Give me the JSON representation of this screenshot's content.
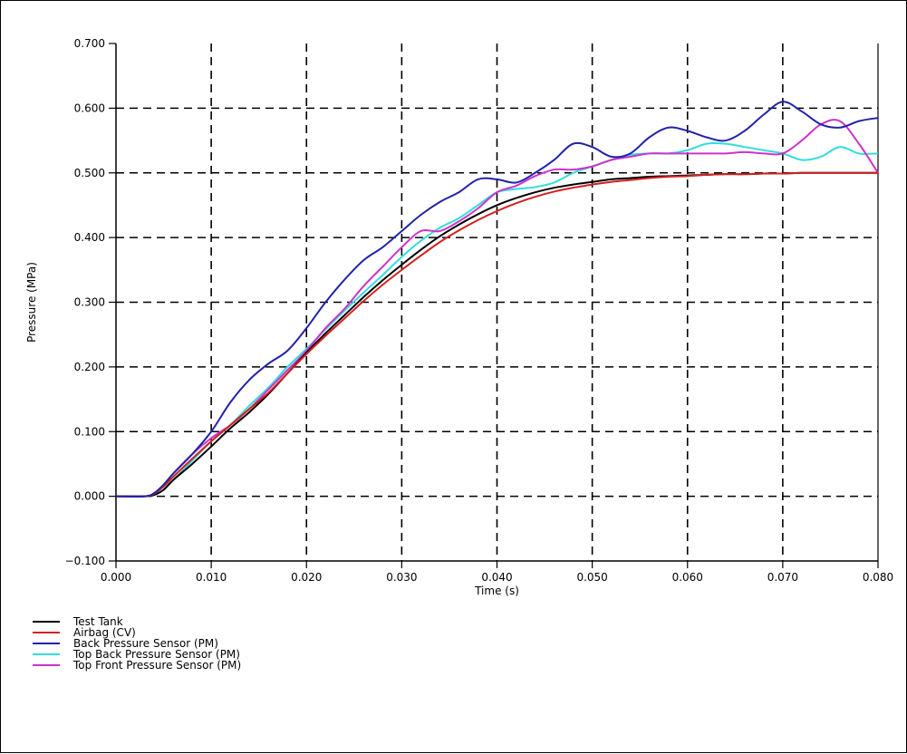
{
  "chart_data": {
    "type": "line",
    "title": "",
    "xlabel": "Time (s)",
    "ylabel": "Pressure (MPa)",
    "xlim": [
      0.0,
      0.08
    ],
    "ylim": [
      -0.1,
      0.7
    ],
    "xticks": [
      "0.000",
      "0.010",
      "0.020",
      "0.030",
      "0.040",
      "0.050",
      "0.060",
      "0.070",
      "0.080"
    ],
    "yticks": [
      "-0.100",
      "0.000",
      "0.100",
      "0.200",
      "0.300",
      "0.400",
      "0.500",
      "0.600",
      "0.700"
    ],
    "grid": true,
    "legend_position": "below",
    "series": [
      {
        "name": "Test Tank",
        "color": "#000000",
        "x": [
          0,
          0.003,
          0.004,
          0.005,
          0.006,
          0.008,
          0.01,
          0.012,
          0.014,
          0.016,
          0.018,
          0.02,
          0.022,
          0.024,
          0.026,
          0.028,
          0.03,
          0.032,
          0.034,
          0.036,
          0.038,
          0.04,
          0.042,
          0.044,
          0.046,
          0.048,
          0.05,
          0.052,
          0.054,
          0.056,
          0.058,
          0.06,
          0.062,
          0.064,
          0.066,
          0.068,
          0.07,
          0.072,
          0.074,
          0.076,
          0.078,
          0.08
        ],
        "y": [
          0,
          0,
          0.002,
          0.01,
          0.025,
          0.05,
          0.077,
          0.105,
          0.13,
          0.158,
          0.19,
          0.222,
          0.252,
          0.28,
          0.308,
          0.334,
          0.358,
          0.381,
          0.402,
          0.42,
          0.436,
          0.45,
          0.461,
          0.47,
          0.477,
          0.482,
          0.486,
          0.49,
          0.492,
          0.494,
          0.495,
          0.496,
          0.497,
          0.498,
          0.498,
          0.499,
          0.499,
          0.5,
          0.5,
          0.5,
          0.5,
          0.5
        ]
      },
      {
        "name": "Airbag (CV)",
        "color": "#d42020",
        "x": [
          0,
          0.003,
          0.004,
          0.005,
          0.006,
          0.008,
          0.01,
          0.012,
          0.014,
          0.016,
          0.018,
          0.02,
          0.022,
          0.024,
          0.026,
          0.028,
          0.03,
          0.032,
          0.034,
          0.036,
          0.038,
          0.04,
          0.042,
          0.044,
          0.046,
          0.048,
          0.05,
          0.052,
          0.054,
          0.056,
          0.058,
          0.06,
          0.062,
          0.064,
          0.066,
          0.068,
          0.07,
          0.072,
          0.074,
          0.076,
          0.078,
          0.08
        ],
        "y": [
          0,
          0,
          0.004,
          0.015,
          0.03,
          0.058,
          0.085,
          0.11,
          0.135,
          0.16,
          0.19,
          0.22,
          0.248,
          0.275,
          0.302,
          0.327,
          0.35,
          0.372,
          0.393,
          0.411,
          0.427,
          0.441,
          0.453,
          0.463,
          0.471,
          0.477,
          0.482,
          0.486,
          0.489,
          0.492,
          0.494,
          0.495,
          0.497,
          0.498,
          0.498,
          0.499,
          0.499,
          0.5,
          0.5,
          0.5,
          0.5,
          0.5
        ]
      },
      {
        "name": "Back Pressure Sensor (PM)",
        "color": "#2222aa",
        "x": [
          0,
          0.003,
          0.004,
          0.005,
          0.006,
          0.008,
          0.01,
          0.012,
          0.014,
          0.016,
          0.018,
          0.02,
          0.022,
          0.024,
          0.026,
          0.028,
          0.03,
          0.032,
          0.034,
          0.036,
          0.038,
          0.04,
          0.042,
          0.044,
          0.046,
          0.048,
          0.05,
          0.052,
          0.054,
          0.056,
          0.058,
          0.06,
          0.062,
          0.064,
          0.066,
          0.068,
          0.07,
          0.072,
          0.074,
          0.076,
          0.078,
          0.08
        ],
        "y": [
          0,
          0,
          0.005,
          0.018,
          0.035,
          0.065,
          0.1,
          0.145,
          0.18,
          0.205,
          0.225,
          0.26,
          0.3,
          0.335,
          0.365,
          0.385,
          0.41,
          0.435,
          0.455,
          0.47,
          0.49,
          0.49,
          0.485,
          0.5,
          0.52,
          0.545,
          0.54,
          0.525,
          0.53,
          0.555,
          0.57,
          0.565,
          0.555,
          0.55,
          0.565,
          0.59,
          0.61,
          0.595,
          0.575,
          0.57,
          0.58,
          0.585
        ]
      },
      {
        "name": "Top Back Pressure Sensor (PM)",
        "color": "#33dddd",
        "x": [
          0,
          0.003,
          0.004,
          0.005,
          0.006,
          0.008,
          0.01,
          0.012,
          0.014,
          0.016,
          0.018,
          0.02,
          0.022,
          0.024,
          0.026,
          0.028,
          0.03,
          0.032,
          0.034,
          0.036,
          0.038,
          0.04,
          0.042,
          0.044,
          0.046,
          0.048,
          0.05,
          0.052,
          0.054,
          0.056,
          0.058,
          0.06,
          0.062,
          0.064,
          0.066,
          0.068,
          0.07,
          0.072,
          0.074,
          0.076,
          0.078,
          0.08
        ],
        "y": [
          0,
          0,
          0.003,
          0.01,
          0.025,
          0.055,
          0.085,
          0.11,
          0.14,
          0.168,
          0.2,
          0.228,
          0.258,
          0.287,
          0.315,
          0.342,
          0.37,
          0.395,
          0.415,
          0.43,
          0.45,
          0.47,
          0.475,
          0.478,
          0.485,
          0.5,
          0.51,
          0.52,
          0.528,
          0.53,
          0.53,
          0.535,
          0.545,
          0.545,
          0.54,
          0.535,
          0.53,
          0.52,
          0.525,
          0.54,
          0.53,
          0.53
        ]
      },
      {
        "name": "Top Front Pressure Sensor (PM)",
        "color": "#cc33cc",
        "x": [
          0,
          0.003,
          0.004,
          0.005,
          0.006,
          0.008,
          0.01,
          0.012,
          0.014,
          0.016,
          0.018,
          0.02,
          0.022,
          0.024,
          0.026,
          0.028,
          0.03,
          0.032,
          0.034,
          0.036,
          0.038,
          0.04,
          0.042,
          0.044,
          0.046,
          0.048,
          0.05,
          0.052,
          0.054,
          0.056,
          0.058,
          0.06,
          0.062,
          0.064,
          0.066,
          0.068,
          0.07,
          0.072,
          0.074,
          0.076,
          0.078,
          0.08
        ],
        "y": [
          0,
          0,
          0.004,
          0.016,
          0.035,
          0.065,
          0.09,
          0.11,
          0.135,
          0.165,
          0.195,
          0.225,
          0.26,
          0.29,
          0.325,
          0.355,
          0.385,
          0.41,
          0.41,
          0.425,
          0.445,
          0.47,
          0.48,
          0.495,
          0.505,
          0.505,
          0.51,
          0.52,
          0.525,
          0.53,
          0.53,
          0.53,
          0.53,
          0.53,
          0.532,
          0.53,
          0.53,
          0.55,
          0.575,
          0.58,
          0.545,
          0.5
        ]
      }
    ]
  }
}
